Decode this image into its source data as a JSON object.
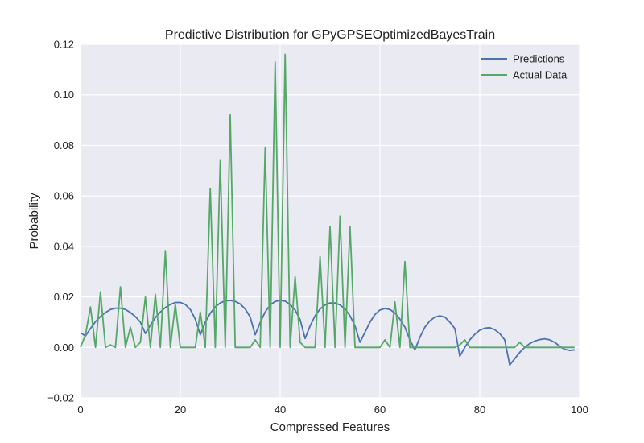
{
  "chart_data": {
    "type": "line",
    "title": "Predictive Distribution for GPyGPSEOptimizedBayesTrain",
    "xlabel": "Compressed Features",
    "ylabel": "Probability",
    "xlim": [
      0,
      100
    ],
    "ylim": [
      -0.02,
      0.12
    ],
    "x_ticks": [
      0,
      20,
      40,
      60,
      80,
      100
    ],
    "y_ticks": [
      -0.02,
      0.0,
      0.02,
      0.04,
      0.06,
      0.08,
      0.1,
      0.12
    ],
    "x_tick_labels": [
      "0",
      "20",
      "40",
      "60",
      "80",
      "100"
    ],
    "y_tick_labels": [
      "−0.02",
      "0.00",
      "0.02",
      "0.04",
      "0.06",
      "0.08",
      "0.10",
      "0.12"
    ],
    "grid": true,
    "legend_position": "top-right",
    "background": "#eaeaf2",
    "series": [
      {
        "name": "Predictions",
        "color": "#4c72b0",
        "x": [
          0,
          1,
          2,
          3,
          4,
          5,
          6,
          7,
          8,
          9,
          10,
          11,
          12,
          13,
          14,
          15,
          16,
          17,
          18,
          19,
          20,
          21,
          22,
          23,
          24,
          25,
          26,
          27,
          28,
          29,
          30,
          31,
          32,
          33,
          34,
          35,
          36,
          37,
          38,
          39,
          40,
          41,
          42,
          43,
          44,
          45,
          46,
          47,
          48,
          49,
          50,
          51,
          52,
          53,
          54,
          55,
          56,
          57,
          58,
          59,
          60,
          61,
          62,
          63,
          64,
          65,
          66,
          67,
          68,
          69,
          70,
          71,
          72,
          73,
          74,
          75,
          76,
          77,
          78,
          79,
          80,
          81,
          82,
          83,
          84,
          85,
          86,
          87,
          88,
          89,
          90,
          91,
          92,
          93,
          94,
          95,
          96,
          97,
          98,
          99
        ],
        "y": [
          0.0058,
          0.0045,
          0.0075,
          0.0102,
          0.0122,
          0.0138,
          0.015,
          0.0155,
          0.0155,
          0.015,
          0.0138,
          0.0122,
          0.01,
          0.0055,
          0.0088,
          0.0118,
          0.014,
          0.0158,
          0.017,
          0.0178,
          0.0178,
          0.017,
          0.015,
          0.0112,
          0.005,
          0.01,
          0.0135,
          0.016,
          0.0176,
          0.0184,
          0.0186,
          0.0182,
          0.0172,
          0.0152,
          0.012,
          0.005,
          0.0098,
          0.014,
          0.0168,
          0.0182,
          0.0186,
          0.0183,
          0.017,
          0.0148,
          0.011,
          0.0035,
          0.0085,
          0.0125,
          0.0152,
          0.0168,
          0.0176,
          0.0176,
          0.0168,
          0.0152,
          0.0125,
          0.0085,
          0.002,
          0.006,
          0.01,
          0.013,
          0.0148,
          0.0154,
          0.015,
          0.0136,
          0.0112,
          0.008,
          0.003,
          -0.001,
          0.004,
          0.008,
          0.0105,
          0.012,
          0.0125,
          0.012,
          0.01,
          0.0075,
          -0.0035,
          0.0,
          0.003,
          0.0052,
          0.0068,
          0.0076,
          0.0078,
          0.007,
          0.0055,
          0.003,
          -0.007,
          -0.0045,
          -0.002,
          0.0,
          0.0015,
          0.0025,
          0.0031,
          0.0034,
          0.003,
          0.002,
          0.0005,
          -0.0008,
          -0.0012,
          -0.001
        ]
      },
      {
        "name": "Actual Data",
        "color": "#55a868",
        "x": [
          0,
          1,
          2,
          3,
          4,
          5,
          6,
          7,
          8,
          9,
          10,
          11,
          12,
          13,
          14,
          15,
          16,
          17,
          18,
          19,
          20,
          21,
          22,
          23,
          24,
          25,
          26,
          27,
          28,
          29,
          30,
          31,
          32,
          33,
          34,
          35,
          36,
          37,
          38,
          39,
          40,
          41,
          42,
          43,
          44,
          45,
          46,
          47,
          48,
          49,
          50,
          51,
          52,
          53,
          54,
          55,
          56,
          57,
          58,
          59,
          60,
          61,
          62,
          63,
          64,
          65,
          66,
          67,
          68,
          69,
          70,
          71,
          72,
          73,
          74,
          75,
          76,
          77,
          78,
          79,
          80,
          81,
          82,
          83,
          84,
          85,
          86,
          87,
          88,
          89,
          90,
          91,
          92,
          93,
          94,
          95,
          96,
          97,
          98,
          99
        ],
        "y": [
          0.0,
          0.005,
          0.016,
          0.0,
          0.022,
          0.0,
          0.001,
          0.0,
          0.024,
          0.0,
          0.008,
          0.0,
          0.002,
          0.02,
          0.0,
          0.021,
          0.0,
          0.038,
          0.0,
          0.017,
          0.0,
          0.0,
          0.0,
          0.0,
          0.014,
          0.0,
          0.063,
          0.0,
          0.074,
          0.0,
          0.092,
          0.0,
          0.0,
          0.0,
          0.0,
          0.003,
          0.0,
          0.079,
          0.0,
          0.113,
          0.0,
          0.116,
          0.0,
          0.028,
          0.002,
          0.0,
          0.0,
          0.0,
          0.036,
          0.0,
          0.048,
          0.0,
          0.052,
          0.0,
          0.048,
          0.0,
          0.0,
          0.0,
          0.0,
          0.0,
          0.0,
          0.003,
          0.0,
          0.018,
          0.0,
          0.034,
          0.0,
          0.0,
          0.0,
          0.0,
          0.0,
          0.0,
          0.0,
          0.0,
          0.0,
          0.0,
          0.001,
          0.003,
          0.0,
          0.0,
          0.0,
          0.0,
          0.0,
          0.0,
          0.0,
          0.0,
          0.0,
          0.0,
          0.002,
          0.0,
          0.0,
          0.0,
          0.0,
          0.0,
          0.0,
          0.0,
          0.0,
          0.0,
          0.0,
          0.0
        ]
      }
    ]
  }
}
